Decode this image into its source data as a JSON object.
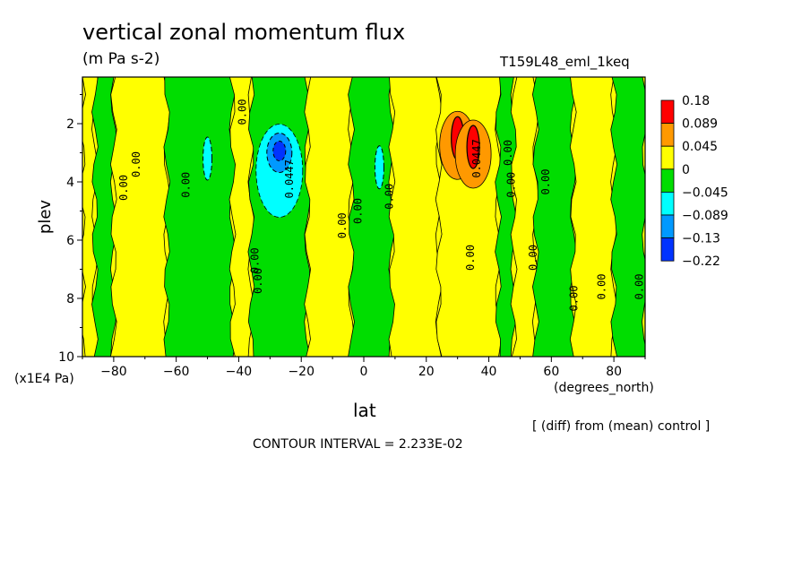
{
  "header": {
    "title": "vertical zonal momentum flux",
    "units": "(m Pa s-2)",
    "run_label": "T159L48_eml_1keq"
  },
  "footer": {
    "scale_note": "(x1E4 Pa)",
    "x_units": "(degrees_north)",
    "x_label": "lat",
    "diff_note": "[ (diff) from (mean) control ]",
    "contour_interval": "CONTOUR INTERVAL = 2.233E-02"
  },
  "chart_data": {
    "type": "heatmap",
    "title": "vertical zonal momentum flux",
    "subtitle": "(m Pa s-2)",
    "xlabel": "lat",
    "xunits": "(degrees_north)",
    "ylabel": "plev",
    "yunits": "(x1E4 Pa)",
    "xlim": [
      -90,
      90
    ],
    "ylim": [
      10,
      0.4
    ],
    "xticks": [
      -80,
      -60,
      -40,
      -20,
      0,
      20,
      40,
      60,
      80
    ],
    "yticks": [
      2,
      4,
      6,
      8,
      10
    ],
    "contour_interval": 0.02233,
    "colorbar": {
      "levels": [
        "0.18",
        "0.089",
        "0.045",
        "0",
        "-0.045",
        "-0.089",
        "-0.13",
        "-0.22"
      ],
      "colors": [
        "#ff0000",
        "#ff9900",
        "#ffff00",
        "#00dd00",
        "#00ffff",
        "#0099ff",
        "#0033ff"
      ]
    },
    "zonal_bands": [
      {
        "from": -90,
        "to": -86,
        "sign": "positive"
      },
      {
        "from": -86,
        "to": -80,
        "sign": "negative"
      },
      {
        "from": -80,
        "to": -63,
        "sign": "positive"
      },
      {
        "from": -63,
        "to": -42,
        "sign": "negative"
      },
      {
        "from": -42,
        "to": -36,
        "sign": "positive"
      },
      {
        "from": -36,
        "to": -18,
        "sign": "negative"
      },
      {
        "from": -18,
        "to": -4,
        "sign": "positive"
      },
      {
        "from": -4,
        "to": 9,
        "sign": "negative"
      },
      {
        "from": 9,
        "to": 24,
        "sign": "positive"
      },
      {
        "from": 24,
        "to": 43,
        "sign": "positive_strong"
      },
      {
        "from": 43,
        "to": 48,
        "sign": "negative"
      },
      {
        "from": 48,
        "to": 55,
        "sign": "positive"
      },
      {
        "from": 55,
        "to": 67,
        "sign": "negative"
      },
      {
        "from": 67,
        "to": 80,
        "sign": "positive"
      },
      {
        "from": 80,
        "to": 90,
        "sign": "negative"
      }
    ],
    "extrema": [
      {
        "lat": -27,
        "plev": 3.0,
        "value": -0.22
      },
      {
        "lat": -50,
        "plev": 3.2,
        "value": -0.089
      },
      {
        "lat": 5,
        "plev": 3.5,
        "value": -0.089
      },
      {
        "lat": 30,
        "plev": 2.5,
        "value": 0.18
      },
      {
        "lat": 35,
        "plev": 2.8,
        "value": 0.18
      }
    ],
    "contour_labels": [
      {
        "text": "0.00",
        "lat": -77,
        "plev": 4.2
      },
      {
        "text": "0.00",
        "lat": -73,
        "plev": 3.4
      },
      {
        "text": "0.00",
        "lat": -57,
        "plev": 4.1
      },
      {
        "text": "0.00",
        "lat": -39,
        "plev": 1.6
      },
      {
        "text": "0.00",
        "lat": -35,
        "plev": 6.7
      },
      {
        "text": "0.00",
        "lat": -34,
        "plev": 7.4
      },
      {
        "text": "0.0447",
        "lat": -24,
        "plev": 3.9
      },
      {
        "text": "0.00",
        "lat": -7,
        "plev": 5.5
      },
      {
        "text": "0.00",
        "lat": -2,
        "plev": 5.0
      },
      {
        "text": "0.00",
        "lat": 8,
        "plev": 4.5
      },
      {
        "text": "0.00",
        "lat": 34,
        "plev": 6.6
      },
      {
        "text": "0.0447",
        "lat": 36,
        "plev": 3.2
      },
      {
        "text": "0.00",
        "lat": 46,
        "plev": 3.0
      },
      {
        "text": "0.00",
        "lat": 47,
        "plev": 4.1
      },
      {
        "text": "0.00",
        "lat": 58,
        "plev": 4.0
      },
      {
        "text": "0.00",
        "lat": 54,
        "plev": 6.6
      },
      {
        "text": "0.00",
        "lat": 67,
        "plev": 8.0
      },
      {
        "text": "0.00",
        "lat": 76,
        "plev": 7.6
      },
      {
        "text": "0.00",
        "lat": 88,
        "plev": 7.6
      }
    ]
  }
}
